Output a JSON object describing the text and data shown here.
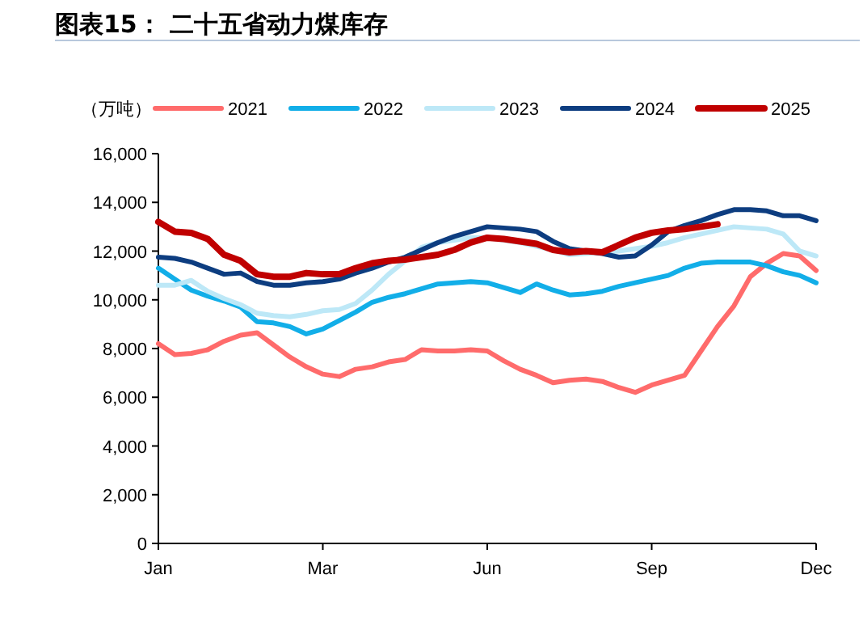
{
  "chart_data": {
    "type": "line",
    "title": "图表15： 二十五省动力煤库存",
    "ylabel": "（万吨）",
    "legend": "top",
    "categories": [
      "Jan",
      null,
      null,
      null,
      null,
      null,
      null,
      null,
      null,
      null,
      "Mar",
      null,
      null,
      null,
      null,
      null,
      null,
      null,
      null,
      null,
      "Jun",
      null,
      null,
      null,
      null,
      null,
      null,
      null,
      null,
      null,
      "Sep",
      null,
      null,
      null,
      null,
      null,
      null,
      null,
      null,
      null,
      "Dec"
    ],
    "ylim": [
      0,
      16000
    ],
    "yticks": [
      {
        "value": 0,
        "label": "0"
      },
      {
        "value": 2000,
        "label": "2,000"
      },
      {
        "value": 4000,
        "label": "4,000"
      },
      {
        "value": 6000,
        "label": "6,000"
      },
      {
        "value": 8000,
        "label": "8,000"
      },
      {
        "value": 10000,
        "label": "10,000"
      },
      {
        "value": 12000,
        "label": "12,000"
      },
      {
        "value": 14000,
        "label": "14,000"
      },
      {
        "value": 16000,
        "label": "16,000"
      }
    ],
    "series": [
      {
        "name": "2021",
        "color": "#ff6b6b",
        "values": [
          8200,
          7750,
          7800,
          7950,
          8300,
          8550,
          8650,
          8150,
          7650,
          7250,
          6950,
          6850,
          7150,
          7250,
          7450,
          7550,
          7950,
          7900,
          7900,
          7950,
          7900,
          7500,
          7150,
          6900,
          6600,
          6700,
          6750,
          6650,
          6400,
          6200,
          6500,
          6700,
          6900,
          7900,
          8900,
          9750,
          10950,
          11500,
          11900,
          11800,
          11200
        ]
      },
      {
        "name": "2022",
        "color": "#12aee8",
        "values": [
          11300,
          10850,
          10400,
          10150,
          9950,
          9700,
          9100,
          9050,
          8900,
          8600,
          8800,
          9150,
          9500,
          9900,
          10100,
          10250,
          10450,
          10650,
          10700,
          10750,
          10700,
          10500,
          10300,
          10650,
          10400,
          10200,
          10250,
          10350,
          10550,
          10700,
          10850,
          11000,
          11300,
          11500,
          11550,
          11550,
          11550,
          11400,
          11150,
          11000,
          10700
        ]
      },
      {
        "name": "2023",
        "color": "#bde8f7",
        "values": [
          10600,
          10600,
          10800,
          10350,
          10050,
          9800,
          9450,
          9350,
          9300,
          9400,
          9550,
          9600,
          9850,
          10400,
          11050,
          11600,
          12150,
          12350,
          12450,
          12550,
          12550,
          12450,
          12350,
          12200,
          12050,
          11850,
          11900,
          11950,
          12000,
          12100,
          12200,
          12350,
          12550,
          12700,
          12850,
          13000,
          12950,
          12900,
          12700,
          12000,
          11800
        ]
      },
      {
        "name": "2024",
        "color": "#0d3d80",
        "values": [
          11750,
          11700,
          11550,
          11300,
          11050,
          11100,
          10750,
          10600,
          10600,
          10700,
          10750,
          10850,
          11100,
          11300,
          11550,
          11750,
          12050,
          12350,
          12600,
          12800,
          13000,
          12950,
          12900,
          12800,
          12400,
          12100,
          12000,
          11900,
          11750,
          11800,
          12250,
          12800,
          13050,
          13250,
          13500,
          13700,
          13700,
          13650,
          13450,
          13450,
          13250
        ]
      },
      {
        "name": "2025",
        "color": "#c00000",
        "values": [
          13200,
          12800,
          12750,
          12500,
          11850,
          11600,
          11050,
          10950,
          10950,
          11100,
          11050,
          11050,
          11300,
          11500,
          11600,
          11650,
          11750,
          11850,
          12050,
          12350,
          12550,
          12500,
          12400,
          12300,
          12050,
          11950,
          12000,
          11950,
          12250,
          12550,
          12750,
          12850,
          12900,
          13000,
          13100,
          null,
          null,
          null,
          null,
          null,
          null
        ]
      }
    ]
  }
}
